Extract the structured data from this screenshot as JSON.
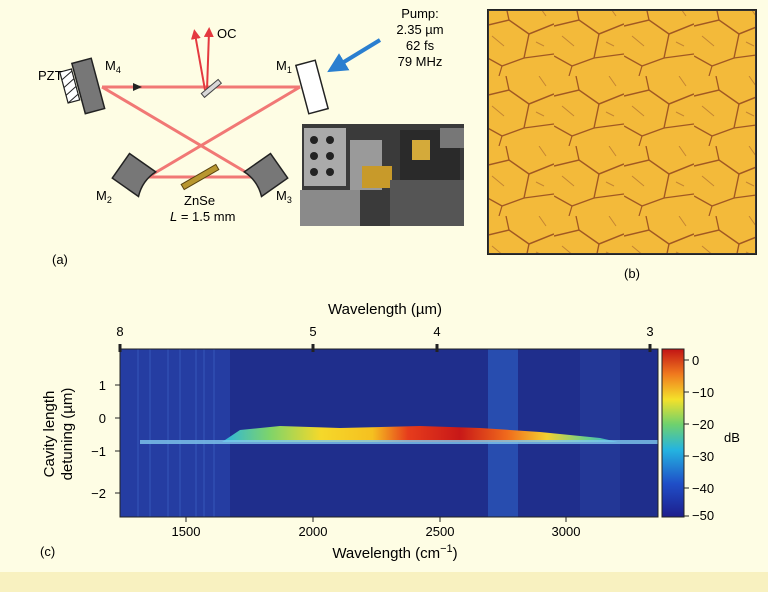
{
  "panel_a": {
    "label": "(a)",
    "pump": {
      "line1": "Pump:",
      "line2": "2.35 µm",
      "line3": "62 fs",
      "line4": "79 MHz"
    },
    "mirrors": {
      "m1": "M",
      "m1_sub": "1",
      "m2": "M",
      "m2_sub": "2",
      "m3": "M",
      "m3_sub": "3",
      "m4": "M",
      "m4_sub": "4"
    },
    "pzt": "PZT",
    "oc": "OC",
    "crystal": "ZnSe",
    "length_symbol": "L",
    "length_value": " = 1.5 mm",
    "colors": {
      "beam": "#f06a6a",
      "pump_arrow": "#2a7fd0",
      "crystal": "#b8972f"
    }
  },
  "panel_b": {
    "label": "(b)",
    "colors": {
      "base": "#f2b52a",
      "grain": "#9a4a10"
    }
  },
  "panel_c": {
    "label": "(c)",
    "top_axis_label": "Wavelength (µm)",
    "top_ticks": [
      "8",
      "5",
      "4",
      "3"
    ],
    "bottom_axis_label_main": "Wavelength (cm",
    "bottom_axis_label_exp": "−1",
    "bottom_axis_label_close": ")",
    "bottom_ticks": [
      "1500",
      "2000",
      "2500",
      "3000"
    ],
    "y_axis_label_1": "Cavity length",
    "y_axis_label_2": "detuning (µm)",
    "y_ticks": [
      "1",
      "0",
      "−1",
      "−2"
    ],
    "colorbar_unit": "dB",
    "colorbar_ticks": [
      "0",
      "−10",
      "−20",
      "−30",
      "−40",
      "−50"
    ]
  },
  "chart_data": {
    "type": "heatmap",
    "x_range": [
      1250,
      3400
    ],
    "y_range": [
      -2.7,
      2.0
    ],
    "z_range": [
      -50,
      0
    ],
    "xlabel": "Wavelength (cm−1)",
    "ylabel": "Cavity length detuning (µm)",
    "secondary_xlabel": "Wavelength (µm)",
    "secondary_x_ticks": [
      8,
      5,
      4,
      3
    ],
    "x_ticks": [
      1500,
      2000,
      2500,
      3000
    ],
    "y_ticks": [
      1,
      0,
      -1,
      -2
    ],
    "colorbar_label": "dB",
    "colorbar_ticks": [
      0,
      -10,
      -20,
      -30,
      -40,
      -50
    ],
    "signal_band": {
      "detuning_center": -0.5,
      "detuning_bottom": -0.65
    },
    "spectrum_at_peak_detuning": {
      "x": [
        1600,
        1700,
        1800,
        1900,
        2000,
        2100,
        2200,
        2300,
        2400,
        2500,
        2600,
        2700,
        2800,
        2900,
        3000,
        3100
      ],
      "y": [
        -30,
        -25,
        -18,
        -16,
        -14,
        -8,
        -4,
        -2,
        -4,
        -10,
        -16,
        -20,
        -24,
        -27,
        -30,
        -34
      ]
    }
  }
}
